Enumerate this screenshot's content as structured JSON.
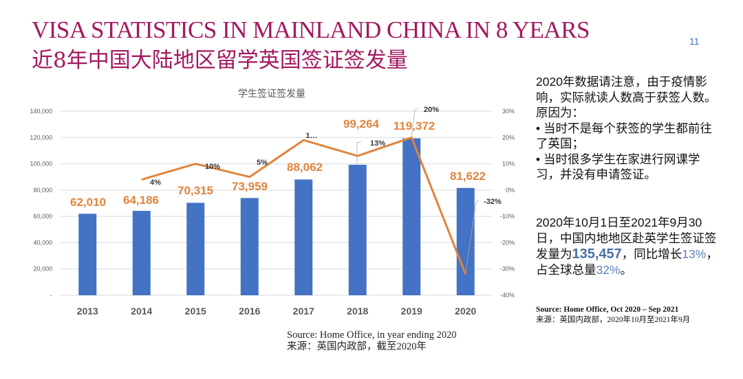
{
  "header": {
    "title_en": "VISA STATISTICS IN MAINLAND CHINA IN 8 YEARS",
    "title_zh": "近8年中国大陆地区留学英国签证签发量",
    "page_number": "11"
  },
  "chart_data": {
    "type": "bar+line",
    "title": "学生签证签发量",
    "categories": [
      "2013",
      "2014",
      "2015",
      "2016",
      "2017",
      "2018",
      "2019",
      "2020"
    ],
    "series": [
      {
        "type": "bar",
        "axis": "left",
        "color": "#4472c4",
        "values": [
          62010,
          64186,
          70315,
          73959,
          88062,
          99264,
          119372,
          81622
        ],
        "labels": [
          "62,010",
          "64,186",
          "70,315",
          "73,959",
          "88,062",
          "99,264",
          "119,372",
          "81,622"
        ]
      },
      {
        "type": "line",
        "axis": "right",
        "color": "#e0843c",
        "values": [
          null,
          4,
          10,
          5,
          19,
          13,
          20,
          -32
        ],
        "labels": [
          "",
          "4%",
          "10%",
          "5%",
          "1…",
          "13%",
          "20%",
          "-32%"
        ]
      }
    ],
    "left_axis": {
      "ylim": [
        0,
        140000
      ],
      "ticks": [
        "-",
        "20,000",
        "40,000",
        "60,000",
        "80,000",
        "100,000",
        "120,000",
        "140,000"
      ]
    },
    "right_axis": {
      "ylim": [
        -40,
        30
      ],
      "ticks": [
        "-40%",
        "-30%",
        "-20%",
        "-10%",
        "0%",
        "10%",
        "20%",
        "30%"
      ]
    },
    "grid": true,
    "legend": "none"
  },
  "chart_source": {
    "line1": "Source: Home Office, in year ending 2020",
    "line2": "来源：英国内政部，截至2020年"
  },
  "notes": {
    "para1": "2020年数据请注意，由于疫情影响，实际就读人数高于获签人数。原因为：",
    "bullet1": "• 当时不是每个获签的学生都前往了英国；",
    "bullet2": "• 当时很多学生在家进行网课学习，并没有申请签证。",
    "para2_a": "2020年10月1日至2021年9月30日，中国内地地区赴英学生签证签发量为",
    "para2_num": "135,457",
    "para2_b": "，同比增长",
    "para2_pct1": "13%",
    "para2_c": "，占全球总量",
    "para2_pct2": "32%",
    "para2_d": "。",
    "source_en": "Source: Home Office, Oct 2020 – Sep 2021",
    "source_zh": "来源：英国内政部，2020年10月至2021年9月"
  }
}
